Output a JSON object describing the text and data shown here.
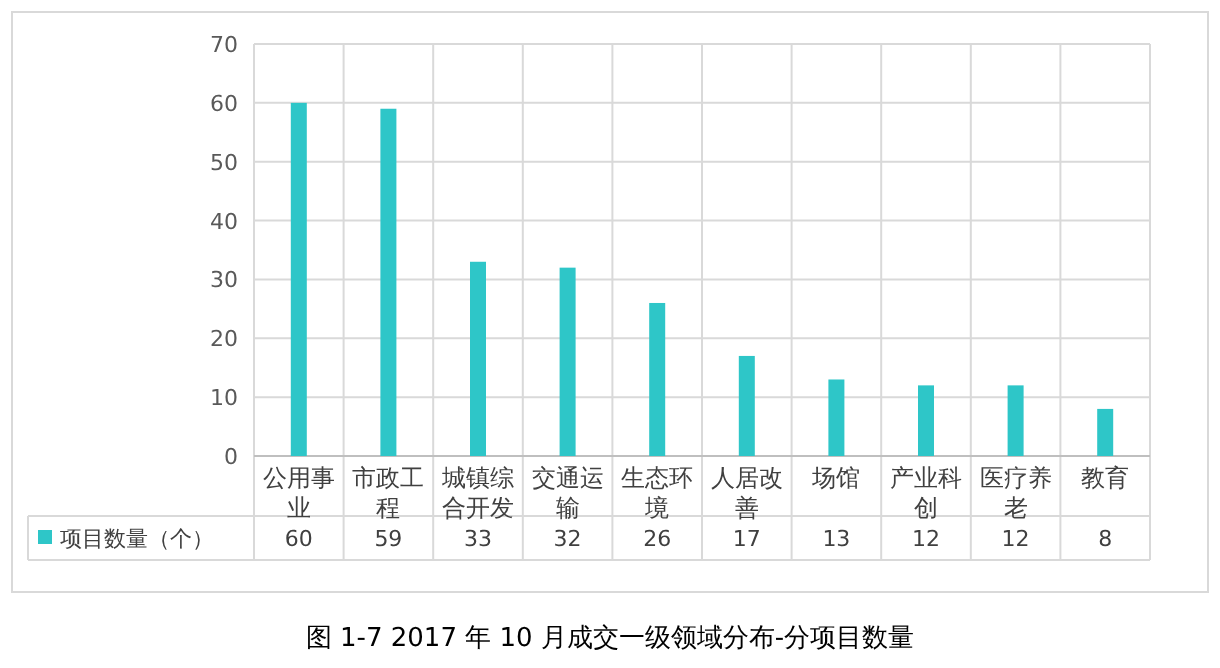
{
  "chart_data": {
    "type": "bar",
    "title": "图 1-7 2017 年 10 月成交一级领域分布-分项目数量",
    "categories": [
      "公用事业",
      "市政工程",
      "城镇综合开发",
      "交通运输",
      "生态环境",
      "人居改善",
      "场馆",
      "产业科创",
      "医疗养老",
      "教育"
    ],
    "series": [
      {
        "name": "项目数量（个）",
        "color": "#2ec6c8",
        "values": [
          60,
          59,
          33,
          32,
          26,
          17,
          13,
          12,
          12,
          8
        ]
      }
    ],
    "ylim": [
      0,
      70
    ],
    "yticks": [
      0,
      10,
      20,
      30,
      40,
      50,
      60,
      70
    ],
    "grid": true,
    "data_labels": true,
    "legend": "bottom"
  }
}
